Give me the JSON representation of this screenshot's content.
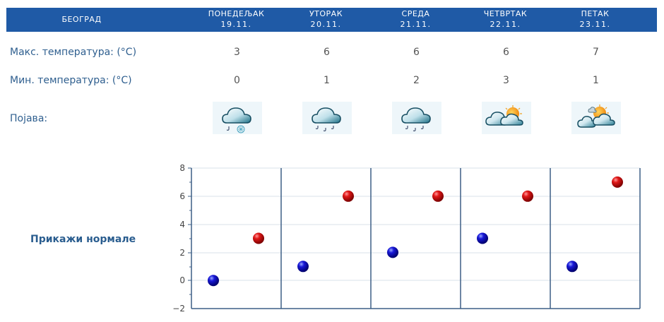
{
  "header": {
    "city": "БЕОГРАД",
    "days": [
      {
        "name": "ПОНЕДЕЉАК",
        "date": "19.11."
      },
      {
        "name": "УТОРАК",
        "date": "20.11."
      },
      {
        "name": "СРЕДА",
        "date": "21.11."
      },
      {
        "name": "ЧЕТВРТАК",
        "date": "22.11."
      },
      {
        "name": "ПЕТАК",
        "date": "23.11."
      }
    ]
  },
  "rows": {
    "max_label": "Макс. температура: (°C)",
    "min_label": "Мин. температура: (°C)",
    "phenomenon_label": "Појава:",
    "max_values": [
      "3",
      "6",
      "6",
      "6",
      "7"
    ],
    "min_values": [
      "0",
      "1",
      "2",
      "3",
      "1"
    ],
    "icons": [
      "rain-snow-icon",
      "rain-icon",
      "rain-icon",
      "partly-cloudy-icon",
      "mostly-sunny-icon"
    ]
  },
  "normals_link": "Прикажи нормале",
  "colors": {
    "header_bg": "#1f5aa6",
    "label_text": "#2f5f8f",
    "min_marker": "#1010c0",
    "max_marker": "#cc1010",
    "axis": "#3d5f86"
  },
  "chart_data": {
    "type": "scatter",
    "title": "",
    "xlabel": "",
    "ylabel": "",
    "categories": [
      "19.11.",
      "20.11.",
      "21.11.",
      "22.11.",
      "23.11."
    ],
    "series": [
      {
        "name": "Мин. температура",
        "color": "#1010c0",
        "values": [
          0,
          1,
          2,
          3,
          1
        ]
      },
      {
        "name": "Макс. температура",
        "color": "#cc1010",
        "values": [
          3,
          6,
          6,
          6,
          7
        ]
      }
    ],
    "ylim": [
      -2,
      8
    ],
    "yticks": [
      -2,
      0,
      2,
      4,
      6,
      8
    ],
    "grid": true,
    "legend": "none"
  }
}
